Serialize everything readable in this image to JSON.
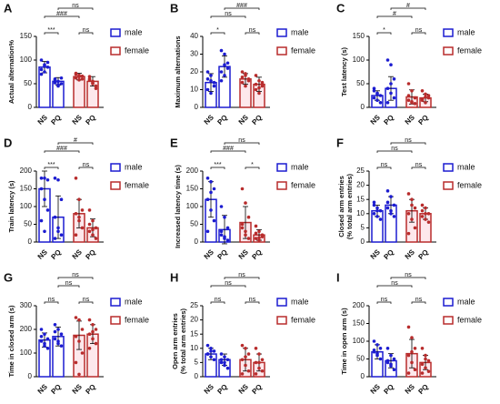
{
  "chart_data": [
    {
      "type": "bar",
      "panel": "A",
      "ylabel": [
        "Actual alternation%"
      ],
      "ylim": [
        0,
        150
      ],
      "yticks": [
        0,
        50,
        100,
        150
      ],
      "categories": [
        "NS",
        "PQ"
      ],
      "series": [
        {
          "name": "male",
          "color": "#1c1cd0",
          "values": [
            85,
            55
          ],
          "errors": [
            12,
            8
          ],
          "points": [
            [
              100,
              90,
              85,
              80,
              75,
              95,
              70,
              88
            ],
            [
              60,
              55,
              50,
              58,
              45,
              62,
              52,
              48
            ]
          ]
        },
        {
          "name": "female",
          "color": "#b82c2c",
          "values": [
            65,
            55
          ],
          "errors": [
            7,
            10
          ],
          "points": [
            [
              70,
              65,
              60,
              72,
              58,
              66,
              62,
              68
            ],
            [
              60,
              50,
              45,
              65,
              55,
              40,
              58,
              52
            ]
          ]
        }
      ],
      "comparisons": [
        {
          "a": 0,
          "b": 1,
          "label": "***"
        },
        {
          "a": 2,
          "b": 3,
          "label": "ns"
        },
        {
          "a": 0,
          "b": 2,
          "label": "###"
        },
        {
          "a": 1,
          "b": 3,
          "label": "ns"
        }
      ]
    },
    {
      "type": "bar",
      "panel": "B",
      "ylabel": [
        "Maximum alternations"
      ],
      "ylim": [
        0,
        40
      ],
      "yticks": [
        0,
        10,
        20,
        30,
        40
      ],
      "categories": [
        "NS",
        "PQ"
      ],
      "series": [
        {
          "name": "male",
          "color": "#1c1cd0",
          "values": [
            14,
            23
          ],
          "errors": [
            5,
            6
          ],
          "points": [
            [
              20,
              18,
              14,
              10,
              8,
              12,
              16,
              15
            ],
            [
              32,
              30,
              25,
              20,
              18,
              22,
              15,
              24
            ]
          ]
        },
        {
          "name": "female",
          "color": "#b82c2c",
          "values": [
            16,
            13
          ],
          "errors": [
            3,
            4
          ],
          "points": [
            [
              20,
              18,
              15,
              14,
              12,
              16,
              17,
              19
            ],
            [
              18,
              15,
              12,
              10,
              8,
              14,
              13,
              11
            ]
          ]
        }
      ],
      "comparisons": [
        {
          "a": 0,
          "b": 1,
          "label": "*"
        },
        {
          "a": 2,
          "b": 3,
          "label": "ns"
        },
        {
          "a": 0,
          "b": 2,
          "label": "ns"
        },
        {
          "a": 1,
          "b": 3,
          "label": "###"
        }
      ]
    },
    {
      "type": "bar",
      "panel": "C",
      "ylabel": [
        "Test latency (s)"
      ],
      "ylim": [
        0,
        150
      ],
      "yticks": [
        0,
        50,
        100,
        150
      ],
      "categories": [
        "NS",
        "PQ"
      ],
      "series": [
        {
          "name": "male",
          "color": "#1c1cd0",
          "values": [
            25,
            40
          ],
          "errors": [
            10,
            25
          ],
          "points": [
            [
              40,
              30,
              25,
              20,
              15,
              10,
              35,
              28
            ],
            [
              100,
              90,
              60,
              40,
              30,
              20,
              10,
              50
            ]
          ]
        },
        {
          "name": "female",
          "color": "#b82c2c",
          "values": [
            22,
            20
          ],
          "errors": [
            15,
            8
          ],
          "points": [
            [
              50,
              35,
              20,
              15,
              10,
              8,
              25,
              12
            ],
            [
              35,
              28,
              20,
              15,
              10,
              25,
              18,
              22
            ]
          ]
        }
      ],
      "comparisons": [
        {
          "a": 0,
          "b": 1,
          "label": "*"
        },
        {
          "a": 2,
          "b": 3,
          "label": "ns"
        },
        {
          "a": 0,
          "b": 2,
          "label": "#"
        },
        {
          "a": 1,
          "b": 3,
          "label": "#"
        }
      ]
    },
    {
      "type": "bar",
      "panel": "D",
      "ylabel": [
        "Train latency (s)"
      ],
      "ylim": [
        0,
        200
      ],
      "yticks": [
        0,
        50,
        100,
        150,
        200
      ],
      "categories": [
        "NS",
        "PQ"
      ],
      "series": [
        {
          "name": "male",
          "color": "#1c1cd0",
          "values": [
            150,
            70
          ],
          "errors": [
            50,
            60
          ],
          "points": [
            [
              180,
              180,
              175,
              150,
              120,
              90,
              60,
              30
            ],
            [
              180,
              175,
              120,
              70,
              40,
              20,
              10,
              30
            ]
          ]
        },
        {
          "name": "female",
          "color": "#b82c2c",
          "values": [
            80,
            40
          ],
          "errors": [
            40,
            25
          ],
          "points": [
            [
              180,
              120,
              90,
              80,
              60,
              40,
              20,
              70
            ],
            [
              90,
              60,
              40,
              30,
              20,
              10,
              50,
              35
            ]
          ]
        }
      ],
      "comparisons": [
        {
          "a": 0,
          "b": 1,
          "label": "***"
        },
        {
          "a": 2,
          "b": 3,
          "label": "ns"
        },
        {
          "a": 0,
          "b": 2,
          "label": "###"
        },
        {
          "a": 1,
          "b": 3,
          "label": "#"
        }
      ]
    },
    {
      "type": "bar",
      "panel": "E",
      "ylabel": [
        "Increased latency time (s)"
      ],
      "ylim": [
        0,
        200
      ],
      "yticks": [
        0,
        50,
        100,
        150,
        200
      ],
      "categories": [
        "NS",
        "PQ"
      ],
      "series": [
        {
          "name": "male",
          "color": "#1c1cd0",
          "values": [
            120,
            35
          ],
          "errors": [
            50,
            40
          ],
          "points": [
            [
              180,
              170,
              150,
              120,
              90,
              60,
              30,
              140
            ],
            [
              100,
              70,
              40,
              20,
              10,
              5,
              30,
              15
            ]
          ]
        },
        {
          "name": "female",
          "color": "#b82c2c",
          "values": [
            55,
            20
          ],
          "errors": [
            45,
            15
          ],
          "points": [
            [
              150,
              110,
              70,
              50,
              30,
              10,
              40,
              20
            ],
            [
              45,
              30,
              20,
              10,
              5,
              15,
              25,
              12
            ]
          ]
        }
      ],
      "comparisons": [
        {
          "a": 0,
          "b": 1,
          "label": "***"
        },
        {
          "a": 2,
          "b": 3,
          "label": "*"
        },
        {
          "a": 0,
          "b": 2,
          "label": "###"
        },
        {
          "a": 1,
          "b": 3,
          "label": "ns"
        }
      ]
    },
    {
      "type": "bar",
      "panel": "F",
      "ylabel": [
        "Closed arm entries",
        "(% total arm entries)"
      ],
      "ylim": [
        0,
        25
      ],
      "yticks": [
        0,
        5,
        10,
        15,
        20,
        25
      ],
      "categories": [
        "NS",
        "PQ"
      ],
      "series": [
        {
          "name": "male",
          "color": "#1c1cd0",
          "values": [
            11,
            13
          ],
          "errors": [
            2,
            3
          ],
          "points": [
            [
              14,
              12,
              11,
              10,
              9,
              8,
              13,
              11
            ],
            [
              18,
              16,
              13,
              12,
              10,
              9,
              14,
              11
            ]
          ]
        },
        {
          "name": "female",
          "color": "#b82c2c",
          "values": [
            11,
            10
          ],
          "errors": [
            4,
            2
          ],
          "points": [
            [
              17,
              15,
              12,
              10,
              8,
              5,
              3,
              13
            ],
            [
              13,
              12,
              10,
              9,
              8,
              7,
              11,
              10
            ]
          ]
        }
      ],
      "comparisons": [
        {
          "a": 0,
          "b": 1,
          "label": "ns"
        },
        {
          "a": 2,
          "b": 3,
          "label": "ns"
        },
        {
          "a": 0,
          "b": 2,
          "label": "ns"
        },
        {
          "a": 1,
          "b": 3,
          "label": "ns"
        }
      ]
    },
    {
      "type": "bar",
      "panel": "G",
      "ylabel": [
        "Time in closed arm (s)"
      ],
      "ylim": [
        0,
        300
      ],
      "yticks": [
        0,
        100,
        200,
        300
      ],
      "categories": [
        "NS",
        "PQ"
      ],
      "series": [
        {
          "name": "male",
          "color": "#1c1cd0",
          "values": [
            155,
            170
          ],
          "errors": [
            30,
            40
          ],
          "points": [
            [
              200,
              180,
              160,
              150,
              140,
              120,
              170,
              130
            ],
            [
              220,
              200,
              180,
              160,
              140,
              130,
              190,
              150
            ]
          ]
        },
        {
          "name": "female",
          "color": "#b82c2c",
          "values": [
            175,
            180
          ],
          "errors": [
            60,
            40
          ],
          "points": [
            [
              250,
              240,
              200,
              170,
              150,
              100,
              60,
              10
            ],
            [
              240,
              220,
              200,
              180,
              160,
              140,
              120,
              190
            ]
          ]
        }
      ],
      "comparisons": [
        {
          "a": 0,
          "b": 1,
          "label": "ns"
        },
        {
          "a": 2,
          "b": 3,
          "label": "ns"
        },
        {
          "a": 1,
          "b": 2,
          "label": "ns"
        },
        {
          "a": 1,
          "b": 3,
          "label": "ns"
        }
      ]
    },
    {
      "type": "bar",
      "panel": "H",
      "ylabel": [
        "Open arm entries",
        "(% total arm entries)"
      ],
      "ylim": [
        0,
        25
      ],
      "yticks": [
        0,
        5,
        10,
        15,
        20,
        25
      ],
      "categories": [
        "NS",
        "PQ"
      ],
      "series": [
        {
          "name": "male",
          "color": "#1c1cd0",
          "values": [
            8,
            6
          ],
          "errors": [
            2,
            2
          ],
          "points": [
            [
              11,
              10,
              9,
              8,
              7,
              6,
              8,
              9
            ],
            [
              8,
              7,
              6,
              5,
              4,
              3,
              6,
              5
            ]
          ]
        },
        {
          "name": "female",
          "color": "#b82c2c",
          "values": [
            6,
            5
          ],
          "errors": [
            4,
            3
          ],
          "points": [
            [
              11,
              10,
              8,
              6,
              4,
              2,
              1,
              7
            ],
            [
              10,
              8,
              6,
              5,
              3,
              2,
              1,
              5
            ]
          ]
        }
      ],
      "comparisons": [
        {
          "a": 0,
          "b": 1,
          "label": "ns"
        },
        {
          "a": 2,
          "b": 3,
          "label": "ns"
        },
        {
          "a": 0,
          "b": 2,
          "label": "ns"
        },
        {
          "a": 1,
          "b": 3,
          "label": "ns"
        }
      ]
    },
    {
      "type": "bar",
      "panel": "I",
      "ylabel": [
        "Time in open arm (s)"
      ],
      "ylim": [
        0,
        200
      ],
      "yticks": [
        0,
        50,
        100,
        150,
        200
      ],
      "categories": [
        "NS",
        "PQ"
      ],
      "series": [
        {
          "name": "male",
          "color": "#1c1cd0",
          "values": [
            70,
            45
          ],
          "errors": [
            20,
            20
          ],
          "points": [
            [
              100,
              90,
              80,
              70,
              60,
              50,
              75,
              65
            ],
            [
              80,
              60,
              50,
              40,
              30,
              20,
              45,
              35
            ]
          ]
        },
        {
          "name": "female",
          "color": "#b82c2c",
          "values": [
            65,
            40
          ],
          "errors": [
            40,
            20
          ],
          "points": [
            [
              140,
              110,
              80,
              60,
              40,
              20,
              10,
              70
            ],
            [
              80,
              60,
              45,
              35,
              25,
              15,
              10,
              50
            ]
          ]
        }
      ],
      "comparisons": [
        {
          "a": 0,
          "b": 1,
          "label": "ns"
        },
        {
          "a": 2,
          "b": 3,
          "label": "ns"
        },
        {
          "a": 0,
          "b": 2,
          "label": "ns"
        },
        {
          "a": 1,
          "b": 3,
          "label": "ns"
        }
      ]
    }
  ]
}
